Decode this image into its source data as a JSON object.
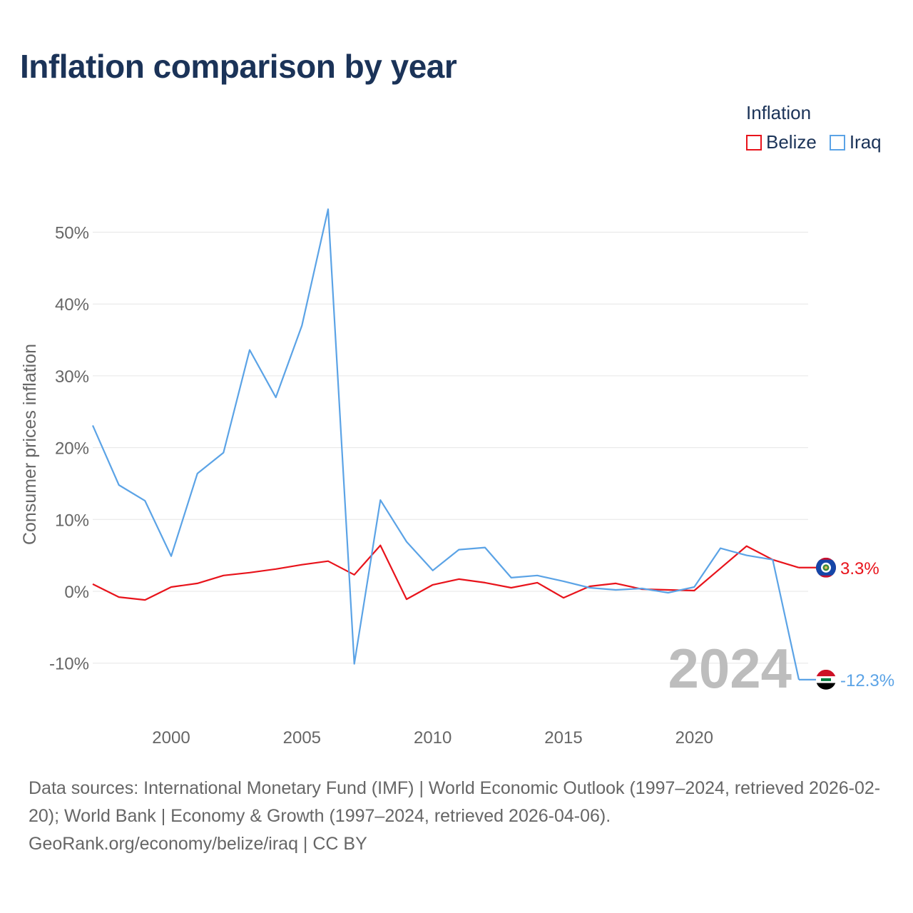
{
  "chart_data": {
    "type": "line",
    "title": "Inflation comparison by year",
    "ylabel": "Consumer prices inflation",
    "xlabel": "",
    "legend_title": "Inflation",
    "legend_position": "top-right",
    "x": [
      1997,
      1998,
      1999,
      2000,
      2001,
      2002,
      2003,
      2004,
      2005,
      2006,
      2007,
      2008,
      2009,
      2010,
      2011,
      2012,
      2013,
      2014,
      2015,
      2016,
      2017,
      2018,
      2019,
      2020,
      2021,
      2022,
      2023,
      2024
    ],
    "xlim": [
      1997,
      2024
    ],
    "ylim": [
      -15,
      55
    ],
    "x_ticks": [
      2000,
      2005,
      2010,
      2015,
      2020
    ],
    "x_tick_labels": [
      "2000",
      "2005",
      "2010",
      "2015",
      "2020"
    ],
    "y_ticks": [
      -10,
      0,
      10,
      20,
      30,
      40,
      50
    ],
    "y_tick_labels": [
      "-10%",
      "0%",
      "10%",
      "20%",
      "30%",
      "40%",
      "50%"
    ],
    "grid": true,
    "watermark_year": "2024",
    "series": [
      {
        "name": "Belize",
        "color": "#e8131b",
        "end_label": "3.3%",
        "flag": "belize-flag-icon",
        "values": [
          1.0,
          -0.8,
          -1.2,
          0.6,
          1.1,
          2.2,
          2.6,
          3.1,
          3.7,
          4.2,
          2.3,
          6.4,
          -1.1,
          0.9,
          1.7,
          1.2,
          0.5,
          1.2,
          -0.9,
          0.7,
          1.1,
          0.3,
          0.2,
          0.1,
          3.2,
          6.3,
          4.4,
          3.3
        ]
      },
      {
        "name": "Iraq",
        "color": "#5ba3e6",
        "end_label": "-12.3%",
        "flag": "iraq-flag-icon",
        "values": [
          23.1,
          14.8,
          12.6,
          4.9,
          16.4,
          19.3,
          33.6,
          27.0,
          37.0,
          53.2,
          -10.1,
          12.7,
          6.9,
          2.9,
          5.8,
          6.1,
          1.9,
          2.2,
          1.4,
          0.5,
          0.2,
          0.4,
          -0.2,
          0.6,
          6.0,
          5.0,
          4.4,
          -12.3
        ]
      }
    ]
  },
  "footer": {
    "sources_line": "Data sources: International Monetary Fund (IMF) | World Economic Outlook (1997–2024, retrieved 2026-02-20); World Bank | Economy & Growth (1997–2024, retrieved 2026-04-06).",
    "credit_line": "GeoRank.org/economy/belize/iraq | CC BY"
  }
}
